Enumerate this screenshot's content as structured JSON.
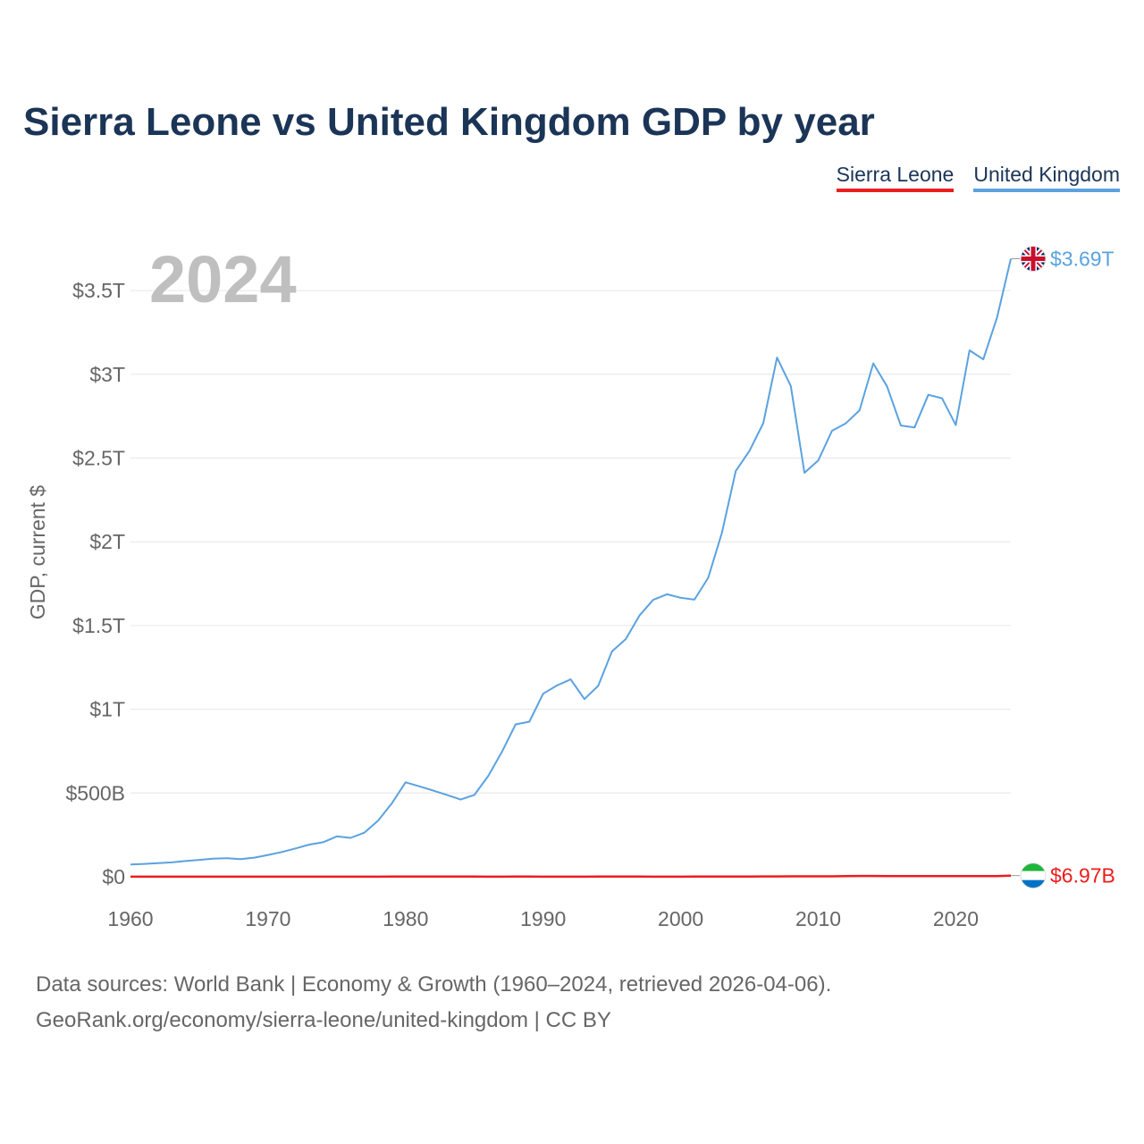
{
  "chart_data": {
    "type": "line",
    "title": "Sierra Leone vs United Kingdom GDP by year",
    "ylabel": "GDP, current $",
    "xlabel": "",
    "year_watermark": "2024",
    "x_ticks": [
      1960,
      1970,
      1980,
      1990,
      2000,
      2010,
      2020
    ],
    "x_tick_labels": [
      "1960",
      "1970",
      "1980",
      "1990",
      "2000",
      "2010",
      "2020"
    ],
    "y_ticks": [
      0,
      500,
      1000,
      1500,
      2000,
      2500,
      3000,
      3500
    ],
    "y_tick_labels": [
      "$0",
      "$500B",
      "$1T",
      "$1.5T",
      "$2T",
      "$2.5T",
      "$3T",
      "$3.5T"
    ],
    "xlim": [
      1960,
      2024
    ],
    "ylim": [
      0,
      3500
    ],
    "y_units": "billions of current US$",
    "legend": [
      "Sierra Leone",
      "United Kingdom"
    ],
    "x": [
      1960,
      1961,
      1962,
      1963,
      1964,
      1965,
      1966,
      1967,
      1968,
      1969,
      1970,
      1971,
      1972,
      1973,
      1974,
      1975,
      1976,
      1977,
      1978,
      1979,
      1980,
      1981,
      1982,
      1983,
      1984,
      1985,
      1986,
      1987,
      1988,
      1989,
      1990,
      1991,
      1992,
      1993,
      1994,
      1995,
      1996,
      1997,
      1998,
      1999,
      2000,
      2001,
      2002,
      2003,
      2004,
      2005,
      2006,
      2007,
      2008,
      2009,
      2010,
      2011,
      2012,
      2013,
      2014,
      2015,
      2016,
      2017,
      2018,
      2019,
      2020,
      2021,
      2022,
      2023,
      2024
    ],
    "series": [
      {
        "name": "United Kingdom",
        "color": "#5ba2e0",
        "end_label": "$3.69T",
        "values": [
          73,
          77,
          81,
          86,
          94,
          101,
          108,
          111,
          105,
          114,
          130,
          148,
          169,
          192,
          206,
          241,
          232,
          263,
          335,
          438,
          564,
          540,
          515,
          489,
          461,
          489,
          601,
          745,
          910,
          926,
          1093,
          1142,
          1179,
          1061,
          1140,
          1345,
          1419,
          1560,
          1653,
          1687,
          1666,
          1655,
          1785,
          2055,
          2422,
          2543,
          2708,
          3100,
          2930,
          2412,
          2485,
          2663,
          2707,
          2785,
          3065,
          2928,
          2694,
          2683,
          2878,
          2857,
          2697,
          3143,
          3089,
          3340,
          3690
        ]
      },
      {
        "name": "Sierra Leone",
        "color": "#ee1c1c",
        "end_label": "$6.97B",
        "values": [
          0.3,
          0.3,
          0.3,
          0.3,
          0.4,
          0.4,
          0.4,
          0.4,
          0.4,
          0.4,
          0.4,
          0.4,
          0.4,
          0.5,
          0.6,
          0.7,
          0.6,
          0.7,
          0.8,
          0.9,
          1.1,
          1.1,
          1.2,
          1.1,
          0.9,
          0.9,
          0.6,
          0.7,
          1.0,
          1.1,
          0.6,
          0.8,
          0.7,
          0.8,
          0.9,
          0.9,
          0.9,
          0.9,
          0.7,
          0.7,
          0.6,
          1.1,
          1.3,
          1.4,
          1.4,
          1.6,
          1.9,
          2.2,
          2.5,
          2.5,
          2.6,
          2.9,
          3.8,
          5.0,
          5.0,
          4.2,
          3.7,
          3.7,
          4.1,
          4.1,
          4.1,
          4.2,
          4.1,
          3.8,
          6.97
        ]
      }
    ]
  },
  "legend": {
    "sierra_leone": {
      "label": "Sierra Leone",
      "color": "#ee1c1c"
    },
    "united_kingdom": {
      "label": "United Kingdom",
      "color": "#5ba2e0"
    }
  },
  "source": {
    "line1": "Data sources: World Bank | Economy & Growth (1960–2024, retrieved 2026-04-06).",
    "line2": "GeoRank.org/economy/sierra-leone/united-kingdom | CC BY"
  },
  "icons": {
    "uk_flag": "uk-flag-icon",
    "sierra_leone_flag": "sierra-leone-flag-icon"
  }
}
